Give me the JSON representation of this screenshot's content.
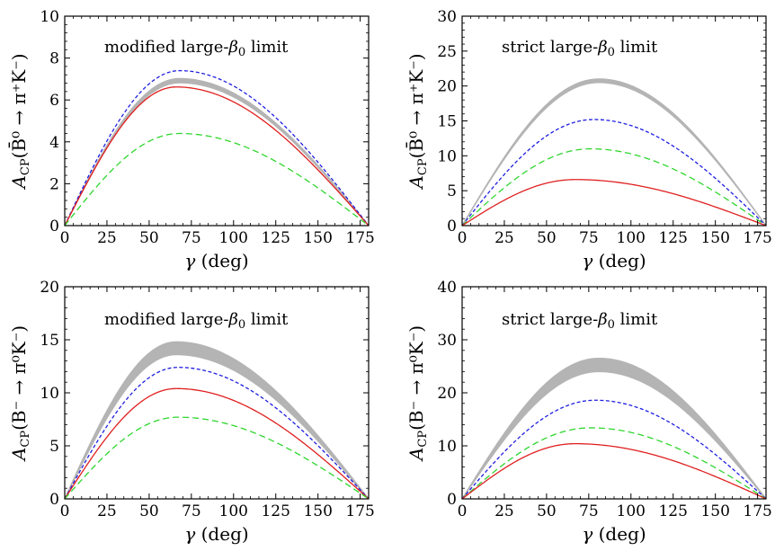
{
  "chart_data": [
    {
      "type": "line",
      "annotation": {
        "pre": "modified large-",
        "sym": "β",
        "sub": "0",
        "post": " limit"
      },
      "ylabel": {
        "a": "A",
        "sub": "CP",
        "body": "(B̄⁰ → π⁺K⁻)"
      },
      "xlabel": {
        "g": "γ",
        "unit": " (deg)"
      },
      "xlim": [
        0,
        180
      ],
      "ylim": [
        0,
        10
      ],
      "xticks": [
        0,
        25,
        50,
        75,
        100,
        125,
        150,
        175
      ],
      "yticks": [
        0,
        2,
        4,
        6,
        8,
        10
      ],
      "band": {
        "color": "#b4b4b4",
        "peak_x": 68,
        "lower_peak": 6.82,
        "upper_peak": 7.02
      },
      "series": [
        {
          "style": "dashed-short",
          "color": "#1f1fe0",
          "peak_x": 68,
          "peak_y": 7.4
        },
        {
          "style": "solid",
          "color": "#e01f1f",
          "peak_x": 66,
          "peak_y": 6.62
        },
        {
          "style": "dashed-long",
          "color": "#2fd62f",
          "peak_x": 68,
          "peak_y": 4.4
        }
      ]
    },
    {
      "type": "line",
      "annotation": {
        "pre": "strict large-",
        "sym": "β",
        "sub": "0",
        "post": " limit"
      },
      "ylabel": {
        "a": "A",
        "sub": "CP",
        "body": "(B̄⁰ → π⁺K⁻)"
      },
      "xlabel": {
        "g": "γ",
        "unit": " (deg)"
      },
      "xlim": [
        0,
        180
      ],
      "ylim": [
        0,
        30
      ],
      "xticks": [
        0,
        25,
        50,
        75,
        100,
        125,
        150,
        175
      ],
      "yticks": [
        0,
        5,
        10,
        15,
        20,
        25,
        30
      ],
      "band": {
        "color": "#b4b4b4",
        "peak_x": 81,
        "lower_peak": 20.5,
        "upper_peak": 21.0
      },
      "series": [
        {
          "style": "dashed-short",
          "color": "#1f1fe0",
          "peak_x": 78,
          "peak_y": 15.2
        },
        {
          "style": "dashed-long",
          "color": "#2fd62f",
          "peak_x": 76,
          "peak_y": 11.0
        },
        {
          "style": "solid",
          "color": "#e01f1f",
          "peak_x": 67,
          "peak_y": 6.6
        }
      ]
    },
    {
      "type": "line",
      "annotation": {
        "pre": "modified large-",
        "sym": "β",
        "sub": "0",
        "post": " limit"
      },
      "ylabel": {
        "a": "A",
        "sub": "CP",
        "body": "(B⁻ → π⁰K⁻)"
      },
      "xlabel": {
        "g": "γ",
        "unit": " (deg)"
      },
      "xlim": [
        0,
        180
      ],
      "ylim": [
        0,
        20
      ],
      "xticks": [
        0,
        25,
        50,
        75,
        100,
        125,
        150,
        175
      ],
      "yticks": [
        0,
        5,
        10,
        15,
        20
      ],
      "band": {
        "color": "#b4b4b4",
        "peak_x": 66,
        "lower_peak": 13.6,
        "upper_peak": 14.8
      },
      "series": [
        {
          "style": "dashed-short",
          "color": "#1f1fe0",
          "peak_x": 67,
          "peak_y": 12.4
        },
        {
          "style": "solid",
          "color": "#e01f1f",
          "peak_x": 66,
          "peak_y": 10.4
        },
        {
          "style": "dashed-long",
          "color": "#2fd62f",
          "peak_x": 67,
          "peak_y": 7.7
        }
      ]
    },
    {
      "type": "line",
      "annotation": {
        "pre": "strict large-",
        "sym": "β",
        "sub": "0",
        "post": " limit"
      },
      "ylabel": {
        "a": "A",
        "sub": "CP",
        "body": "(B⁻ → π⁰K⁻)"
      },
      "xlabel": {
        "g": "γ",
        "unit": " (deg)"
      },
      "xlim": [
        0,
        180
      ],
      "ylim": [
        0,
        40
      ],
      "xticks": [
        0,
        25,
        50,
        75,
        100,
        125,
        150,
        175
      ],
      "yticks": [
        0,
        10,
        20,
        30,
        40
      ],
      "band": {
        "color": "#b4b4b4",
        "peak_x": 81,
        "lower_peak": 24.0,
        "upper_peak": 26.5
      },
      "series": [
        {
          "style": "dashed-short",
          "color": "#1f1fe0",
          "peak_x": 79,
          "peak_y": 18.6
        },
        {
          "style": "dashed-long",
          "color": "#2fd62f",
          "peak_x": 76,
          "peak_y": 13.4
        },
        {
          "style": "solid",
          "color": "#e01f1f",
          "peak_x": 67,
          "peak_y": 10.4
        }
      ]
    }
  ]
}
